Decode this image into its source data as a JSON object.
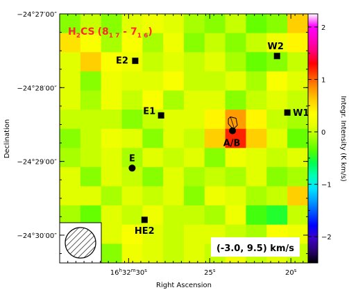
{
  "chart_data": {
    "type": "heatmap",
    "title": "H2CS (8 1 7 - 7 1 6)",
    "title_parts": {
      "molecule_h": "H",
      "molecule_sub2": "2",
      "molecule_cs": "CS",
      "transition_open": "(8",
      "up_sub": "1 7",
      "dash": " - 7",
      "low_sub": "1 6",
      "transition_close": ")"
    },
    "velocity_range_label": "(-3.0, 9.5) km/s",
    "xlabel": "Right Ascension",
    "ylabel": "Declination",
    "colorbar_label": "Integr. Intensity (K km/s)",
    "x_ticks": [
      {
        "label_h": "16",
        "label_hs": "h",
        "label_m": "32",
        "label_ms": "m",
        "label_s": "30",
        "label_ss": "s",
        "col": 3.33
      },
      {
        "label_s": "25",
        "label_ss": "s",
        "col": 7.25
      },
      {
        "label_s": "20",
        "label_ss": "s",
        "col": 11.17
      }
    ],
    "y_ticks": [
      {
        "label": "−24°27′00″",
        "row": 0.0
      },
      {
        "label": "−24°28′00″",
        "row": 3.85
      },
      {
        "label": "−24°29′00″",
        "row": 7.7
      },
      {
        "label": "−24°30′00″",
        "row": 11.55
      }
    ],
    "colorbar": {
      "min": -2.5,
      "max": 2.25,
      "ticks": [
        2,
        1,
        0,
        -1,
        -2
      ],
      "tick_labels": [
        "2",
        "1",
        "0",
        "−1",
        "−2"
      ],
      "colormap": [
        "#000000",
        "#2a0073",
        "#3c00c8",
        "#0000ff",
        "#0050ff",
        "#00a0ff",
        "#00e6ff",
        "#00ffb4",
        "#00ff50",
        "#50ff00",
        "#a0ff00",
        "#e6ff00",
        "#ffff00",
        "#ffd200",
        "#ff9600",
        "#ff5000",
        "#ff0000",
        "#ff0078",
        "#ff00c8",
        "#ff00ff",
        "#ffffff"
      ]
    },
    "grid": {
      "rows": 13,
      "cols": 12
    },
    "values": [
      [
        -0.2,
        0.0,
        -0.2,
        0.1,
        0.2,
        0.1,
        -0.1,
        -0.2,
        0.0,
        -0.3,
        -0.2,
        0.6
      ],
      [
        0.5,
        0.3,
        -0.1,
        0.3,
        -0.1,
        0.2,
        -0.2,
        0.0,
        -0.2,
        0.0,
        0.2,
        0.4
      ],
      [
        0.1,
        0.6,
        0.3,
        0.2,
        0.0,
        0.1,
        0.0,
        0.1,
        -0.1,
        -0.3,
        -0.2,
        0.0
      ],
      [
        0.1,
        -0.2,
        0.2,
        0.1,
        0.1,
        0.3,
        0.0,
        0.0,
        0.1,
        -0.1,
        0.3,
        0.1
      ],
      [
        0.1,
        -0.1,
        0.2,
        0.0,
        0.3,
        -0.1,
        0.1,
        0.1,
        -0.2,
        0.0,
        0.1,
        0.0
      ],
      [
        0.0,
        0.0,
        0.0,
        -0.2,
        0.0,
        0.1,
        0.1,
        0.4,
        0.8,
        0.4,
        0.0,
        -0.1
      ],
      [
        -0.2,
        0.0,
        0.2,
        0.1,
        -0.2,
        0.1,
        0.0,
        0.6,
        1.2,
        0.6,
        0.1,
        -0.3
      ],
      [
        -0.1,
        0.0,
        0.1,
        -0.1,
        0.1,
        0.0,
        0.1,
        -0.2,
        0.2,
        0.1,
        0.0,
        0.1
      ],
      [
        0.1,
        -0.2,
        0.1,
        0.0,
        -0.2,
        0.1,
        -0.1,
        0.0,
        -0.1,
        0.1,
        -0.2,
        -0.1
      ],
      [
        0.1,
        0.1,
        -0.1,
        0.1,
        0.0,
        0.1,
        -0.2,
        0.2,
        0.1,
        -0.1,
        0.0,
        0.6
      ],
      [
        -0.1,
        -0.3,
        0.1,
        0.0,
        0.2,
        0.0,
        0.0,
        -0.1,
        0.2,
        -0.4,
        -0.5,
        0.0
      ],
      [
        0.0,
        -0.2,
        0.1,
        0.3,
        0.1,
        0.0,
        0.1,
        0.1,
        0.0,
        -0.1,
        0.3,
        0.2
      ],
      [
        0.1,
        0.0,
        -0.2,
        0.2,
        0.1,
        0.0,
        0.1,
        0.0,
        0.2,
        0.0,
        0.1,
        0.0
      ]
    ],
    "sources": [
      {
        "name": "W2",
        "marker": "square",
        "col": 10.5,
        "row": 2.2
      },
      {
        "name": "E2",
        "marker": "square",
        "col": 3.65,
        "row": 2.45
      },
      {
        "name": "E1",
        "marker": "square",
        "col": 4.9,
        "row": 5.3
      },
      {
        "name": "W1",
        "marker": "square",
        "col": 11.0,
        "row": 5.15
      },
      {
        "name": "A/B",
        "marker": "circle",
        "col": 8.35,
        "row": 6.1
      },
      {
        "name": "E",
        "marker": "circle",
        "col": 3.5,
        "row": 8.05
      },
      {
        "name": "HE2",
        "marker": "square",
        "col": 4.1,
        "row": 10.75
      }
    ],
    "beam_hatched": true
  }
}
